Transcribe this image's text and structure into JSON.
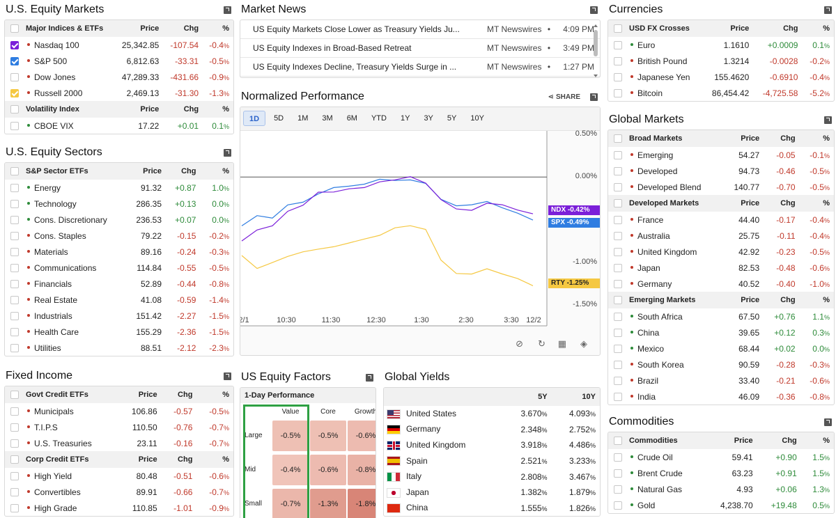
{
  "equity": {
    "title": "U.S. Equity Markets",
    "cols": {
      "price": "Price",
      "chg": "Chg",
      "pct": "%"
    },
    "group1": "Major Indices & ETFs",
    "rows1": [
      {
        "name": "Nasdaq 100",
        "price": "25,342.85",
        "chg": "-107.54",
        "pct": "-0.4",
        "color": "#7b1fd9"
      },
      {
        "name": "S&P 500",
        "price": "6,812.63",
        "chg": "-33.31",
        "pct": "-0.5",
        "color": "#2f7de1"
      },
      {
        "name": "Dow Jones",
        "price": "47,289.33",
        "chg": "-431.66",
        "pct": "-0.9",
        "color": ""
      },
      {
        "name": "Russell 2000",
        "price": "2,469.13",
        "chg": "-31.30",
        "pct": "-1.3",
        "color": "#f5c842"
      }
    ],
    "group2": "Volatility Index",
    "rows2": [
      {
        "name": "CBOE VIX",
        "price": "17.22",
        "chg": "+0.01",
        "pct": "0.1"
      }
    ]
  },
  "sectors": {
    "title": "U.S. Equity Sectors",
    "group": "S&P Sector ETFs",
    "rows": [
      {
        "name": "Energy",
        "price": "91.32",
        "chg": "+0.87",
        "pct": "1.0"
      },
      {
        "name": "Technology",
        "price": "286.35",
        "chg": "+0.13",
        "pct": "0.0"
      },
      {
        "name": "Cons. Discretionary",
        "price": "236.53",
        "chg": "+0.07",
        "pct": "0.0"
      },
      {
        "name": "Cons. Staples",
        "price": "79.22",
        "chg": "-0.15",
        "pct": "-0.2"
      },
      {
        "name": "Materials",
        "price": "89.16",
        "chg": "-0.24",
        "pct": "-0.3"
      },
      {
        "name": "Communications",
        "price": "114.84",
        "chg": "-0.55",
        "pct": "-0.5"
      },
      {
        "name": "Financials",
        "price": "52.89",
        "chg": "-0.44",
        "pct": "-0.8"
      },
      {
        "name": "Real Estate",
        "price": "41.08",
        "chg": "-0.59",
        "pct": "-1.4"
      },
      {
        "name": "Industrials",
        "price": "151.42",
        "chg": "-2.27",
        "pct": "-1.5"
      },
      {
        "name": "Health Care",
        "price": "155.29",
        "chg": "-2.36",
        "pct": "-1.5"
      },
      {
        "name": "Utilities",
        "price": "88.51",
        "chg": "-2.12",
        "pct": "-2.3"
      }
    ]
  },
  "fixed": {
    "title": "Fixed Income",
    "group1": "Govt Credit ETFs",
    "rows1": [
      {
        "name": "Municipals",
        "price": "106.86",
        "chg": "-0.57",
        "pct": "-0.5"
      },
      {
        "name": "T.I.P.S",
        "price": "110.50",
        "chg": "-0.76",
        "pct": "-0.7"
      },
      {
        "name": "U.S. Treasuries",
        "price": "23.11",
        "chg": "-0.16",
        "pct": "-0.7"
      }
    ],
    "group2": "Corp Credit ETFs",
    "rows2": [
      {
        "name": "High Yield",
        "price": "80.48",
        "chg": "-0.51",
        "pct": "-0.6"
      },
      {
        "name": "Convertibles",
        "price": "89.91",
        "chg": "-0.66",
        "pct": "-0.7"
      },
      {
        "name": "High Grade",
        "price": "110.85",
        "chg": "-1.01",
        "pct": "-0.9"
      }
    ]
  },
  "news": {
    "title": "Market News",
    "items": [
      {
        "headline": "US Equity Markets Close Lower as Treasury Yields Ju...",
        "source": "MT Newswires",
        "sep": "•",
        "time": "4:09 PM"
      },
      {
        "headline": "US Equity Indexes in Broad-Based Retreat",
        "source": "MT Newswires",
        "sep": "•",
        "time": "3:49 PM"
      },
      {
        "headline": "US Equity Indexes Decline, Treasury Yields Surge in ...",
        "source": "MT Newswires",
        "sep": "•",
        "time": "1:27 PM"
      }
    ]
  },
  "perf": {
    "title": "Normalized Performance",
    "share": "SHARE",
    "tabs": [
      "1D",
      "5D",
      "1M",
      "3M",
      "6M",
      "YTD",
      "1Y",
      "3Y",
      "5Y",
      "10Y"
    ],
    "legend": [
      {
        "name": "Nasdaq 100",
        "color": "#7b1fd9"
      },
      {
        "name": "Russell 2000",
        "color": "#f5c842"
      },
      {
        "name": "S&P 500",
        "color": "#2f7de1"
      }
    ],
    "tags": [
      {
        "text": "NDX  -0.42%",
        "color": "#7b1fd9"
      },
      {
        "text": "SPX  -0.49%",
        "color": "#2f7de1"
      },
      {
        "text": "RTY  -1.25%",
        "color": "#f5c842"
      }
    ]
  },
  "chart_data": {
    "type": "line",
    "x_ticks": [
      "2/1",
      "10:30",
      "11:30",
      "12:30",
      "1:30",
      "2:30",
      "3:30",
      "12/2"
    ],
    "y_ticks": [
      "0.50%",
      "0.00%",
      "-1.00%",
      "-1.50%"
    ],
    "ylim": [
      -1.5,
      0.5
    ],
    "series": [
      {
        "name": "Nasdaq 100",
        "color": "#7b1fd9",
        "values": [
          -0.75,
          -0.6,
          -0.55,
          -0.4,
          -0.35,
          -0.2,
          -0.18,
          -0.12,
          -0.1,
          -0.05,
          -0.05,
          -0.02,
          -0.08,
          -0.25,
          -0.35,
          -0.38,
          -0.32,
          -0.35,
          -0.4,
          -0.42
        ]
      },
      {
        "name": "Russell 2000",
        "color": "#f5c842",
        "values": [
          -0.9,
          -1.05,
          -1.0,
          -0.95,
          -0.9,
          -0.85,
          -0.8,
          -0.75,
          -0.72,
          -0.7,
          -0.62,
          -0.58,
          -0.6,
          -0.95,
          -1.12,
          -1.15,
          -1.1,
          -1.15,
          -1.18,
          -1.25
        ]
      },
      {
        "name": "S&P 500",
        "color": "#2f7de1",
        "values": [
          -0.55,
          -0.45,
          -0.5,
          -0.35,
          -0.3,
          -0.18,
          -0.1,
          -0.1,
          -0.1,
          -0.05,
          -0.05,
          -0.02,
          -0.05,
          -0.25,
          -0.35,
          -0.35,
          -0.3,
          -0.35,
          -0.4,
          -0.49
        ]
      }
    ]
  },
  "factors": {
    "title": "US Equity Factors",
    "subtitle": "1-Day Performance",
    "cols": [
      "Value",
      "Core",
      "Growth"
    ],
    "rows": [
      {
        "label": "Large",
        "vals": [
          "-0.5%",
          "-0.5%",
          "-0.6%"
        ]
      },
      {
        "label": "Mid",
        "vals": [
          "-0.4%",
          "-0.6%",
          "-0.8%"
        ]
      },
      {
        "label": "Small",
        "vals": [
          "-0.7%",
          "-1.3%",
          "-1.8%"
        ]
      }
    ]
  },
  "yields": {
    "title": "Global Yields",
    "cols": [
      "5Y",
      "10Y"
    ],
    "rows": [
      {
        "name": "United States",
        "y5": "3.670",
        "y10": "4.093",
        "flag": "us"
      },
      {
        "name": "Germany",
        "y5": "2.348",
        "y10": "2.752",
        "flag": "de"
      },
      {
        "name": "United Kingdom",
        "y5": "3.918",
        "y10": "4.486",
        "flag": "uk"
      },
      {
        "name": "Spain",
        "y5": "2.521",
        "y10": "3.233",
        "flag": "es"
      },
      {
        "name": "Italy",
        "y5": "2.808",
        "y10": "3.467",
        "flag": "it"
      },
      {
        "name": "Japan",
        "y5": "1.382",
        "y10": "1.879",
        "flag": "jp"
      },
      {
        "name": "China",
        "y5": "1.555",
        "y10": "1.826",
        "flag": "cn"
      }
    ]
  },
  "currencies": {
    "title": "Currencies",
    "group": "USD FX Crosses",
    "rows": [
      {
        "name": "Euro",
        "price": "1.1610",
        "chg": "+0.0009",
        "pct": "0.1"
      },
      {
        "name": "British Pound",
        "price": "1.3214",
        "chg": "-0.0028",
        "pct": "-0.2"
      },
      {
        "name": "Japanese Yen",
        "price": "155.4620",
        "chg": "-0.6910",
        "pct": "-0.4"
      },
      {
        "name": "Bitcoin",
        "price": "86,454.42",
        "chg": "-4,725.58",
        "pct": "-5.2"
      }
    ]
  },
  "global": {
    "title": "Global Markets",
    "groups": [
      {
        "name": "Broad Markets",
        "rows": [
          {
            "name": "Emerging",
            "price": "54.27",
            "chg": "-0.05",
            "pct": "-0.1"
          },
          {
            "name": "Developed",
            "price": "94.73",
            "chg": "-0.46",
            "pct": "-0.5"
          },
          {
            "name": "Developed Blend",
            "price": "140.77",
            "chg": "-0.70",
            "pct": "-0.5"
          }
        ]
      },
      {
        "name": "Developed Markets",
        "rows": [
          {
            "name": "France",
            "price": "44.40",
            "chg": "-0.17",
            "pct": "-0.4"
          },
          {
            "name": "Australia",
            "price": "25.75",
            "chg": "-0.11",
            "pct": "-0.4"
          },
          {
            "name": "United Kingdom",
            "price": "42.92",
            "chg": "-0.23",
            "pct": "-0.5"
          },
          {
            "name": "Japan",
            "price": "82.53",
            "chg": "-0.48",
            "pct": "-0.6"
          },
          {
            "name": "Germany",
            "price": "40.52",
            "chg": "-0.40",
            "pct": "-1.0"
          }
        ]
      },
      {
        "name": "Emerging Markets",
        "rows": [
          {
            "name": "South Africa",
            "price": "67.50",
            "chg": "+0.76",
            "pct": "1.1"
          },
          {
            "name": "China",
            "price": "39.65",
            "chg": "+0.12",
            "pct": "0.3"
          },
          {
            "name": "Mexico",
            "price": "68.44",
            "chg": "+0.02",
            "pct": "0.0"
          },
          {
            "name": "South Korea",
            "price": "90.59",
            "chg": "-0.28",
            "pct": "-0.3"
          },
          {
            "name": "Brazil",
            "price": "33.40",
            "chg": "-0.21",
            "pct": "-0.6"
          },
          {
            "name": "India",
            "price": "46.09",
            "chg": "-0.36",
            "pct": "-0.8"
          }
        ]
      }
    ]
  },
  "commodities": {
    "title": "Commodities",
    "group": "Commodities",
    "rows": [
      {
        "name": "Crude Oil",
        "price": "59.41",
        "chg": "+0.90",
        "pct": "1.5"
      },
      {
        "name": "Brent Crude",
        "price": "63.23",
        "chg": "+0.91",
        "pct": "1.5"
      },
      {
        "name": "Natural Gas",
        "price": "4.93",
        "chg": "+0.06",
        "pct": "1.3"
      },
      {
        "name": "Gold",
        "price": "4,238.70",
        "chg": "+19.48",
        "pct": "0.5"
      }
    ]
  }
}
